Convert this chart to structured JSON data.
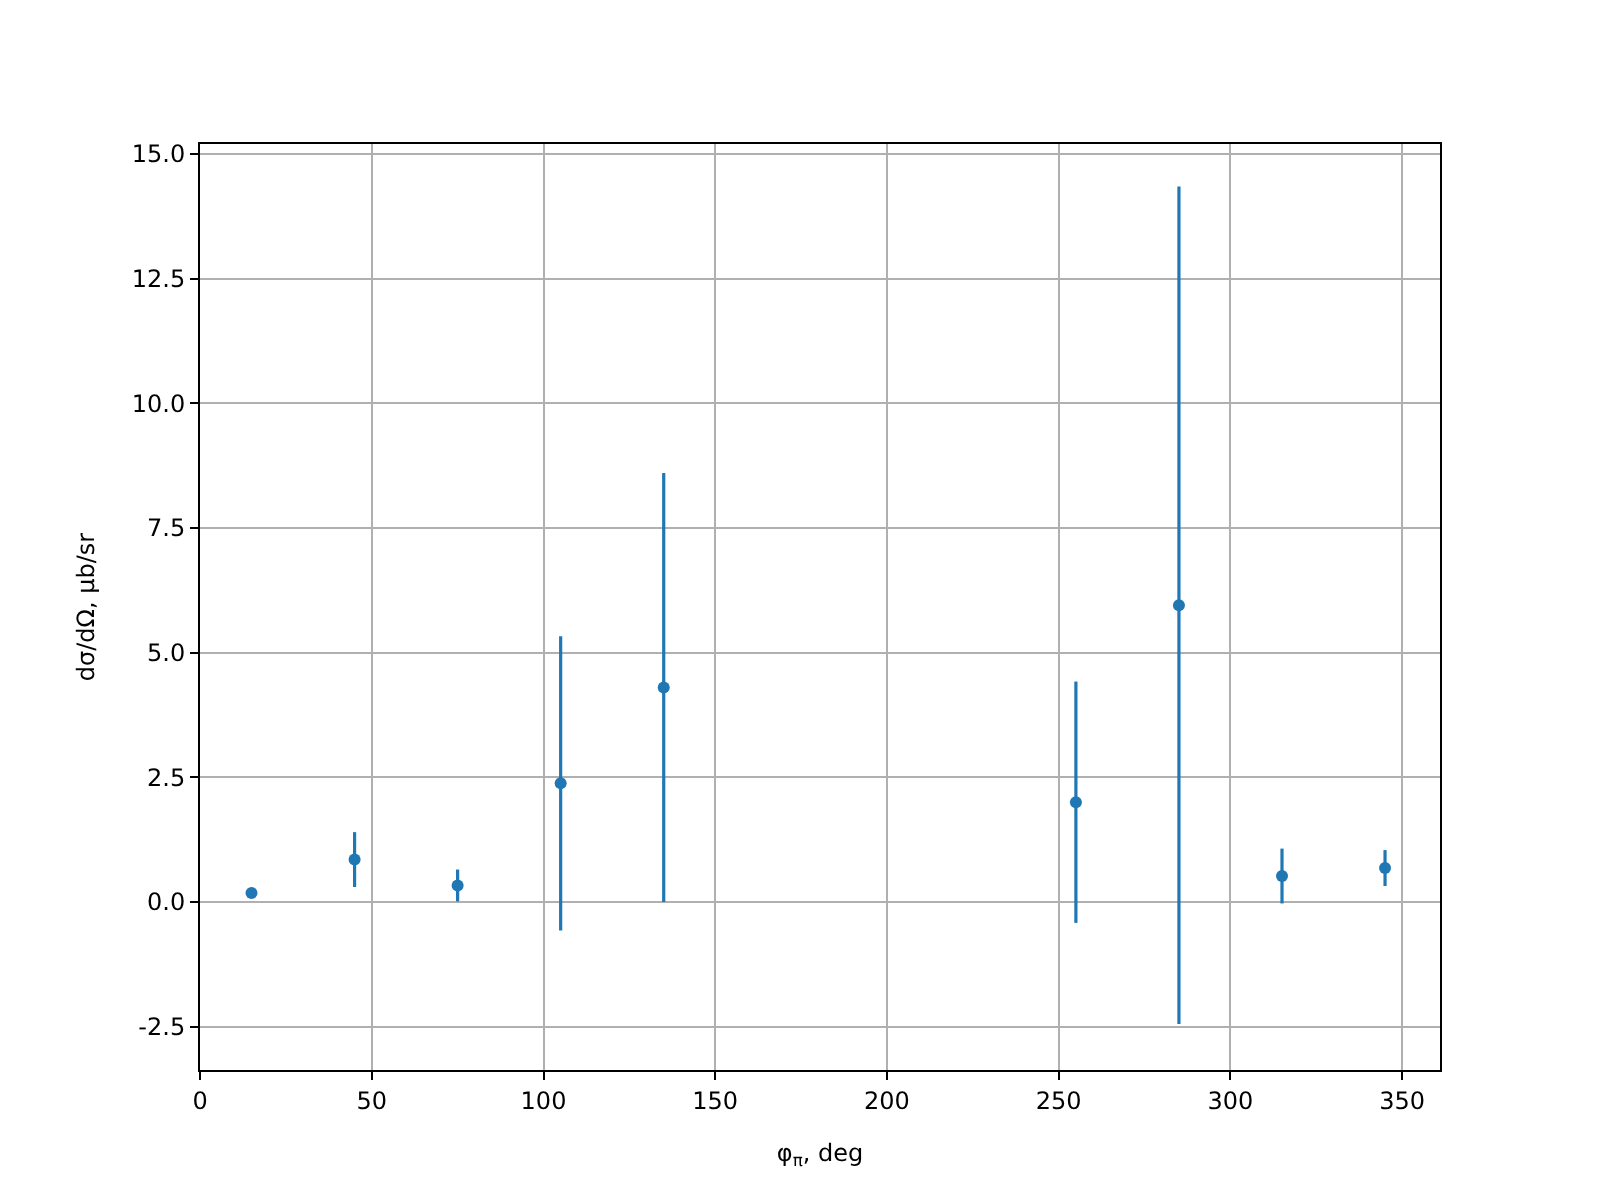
{
  "chart_data": {
    "type": "scatter",
    "xlabel": "φ$_{π}$, deg",
    "ylabel": "dσ/dΩ, μb/sr",
    "x": [
      15,
      45,
      75,
      105,
      135,
      255,
      285,
      315,
      345
    ],
    "series": [
      {
        "color": "#1f77b4",
        "values": [
          0.18,
          0.85,
          0.33,
          2.38,
          4.3,
          2.0,
          5.95,
          0.52,
          0.68
        ],
        "errors": [
          0.1,
          0.55,
          0.32,
          2.95,
          4.3,
          2.42,
          8.4,
          0.55,
          0.36
        ]
      }
    ],
    "xlim": [
      0,
      361
    ],
    "xticks": [
      0,
      50,
      100,
      150,
      200,
      250,
      300,
      350
    ],
    "ylim": [
      -3.37,
      15.2
    ],
    "yticks": [
      -2.5,
      {
        "value": 0,
        "label": "0.0"
      },
      2.5,
      {
        "value": 5,
        "label": "5.0"
      },
      7.5,
      {
        "value": 10,
        "label": "10.0"
      },
      12.5,
      {
        "value": 15,
        "label": "15.0"
      }
    ],
    "grid": true,
    "marker": "circle",
    "legend": false
  }
}
